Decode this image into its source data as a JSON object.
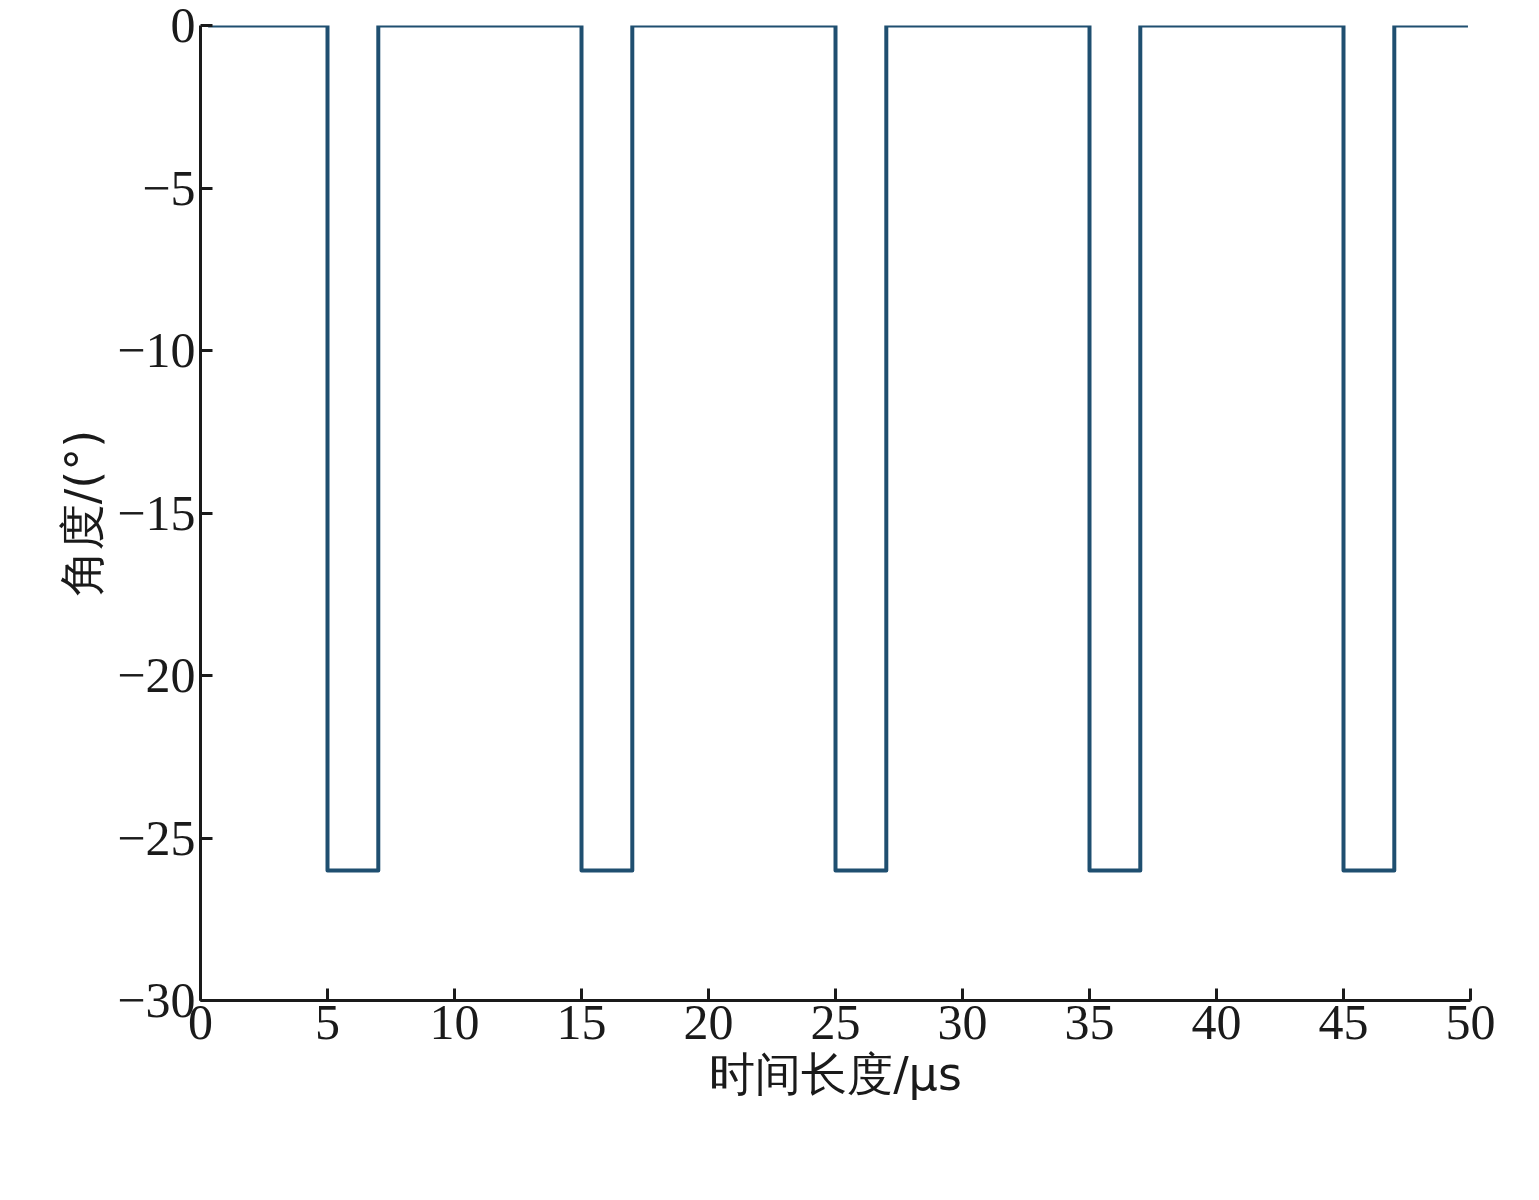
{
  "chart_data": {
    "type": "line",
    "xlabel": "时间长度/μs",
    "ylabel": "角度/(°)",
    "x": [
      0.3,
      5,
      5,
      7,
      7,
      15,
      15,
      17,
      17,
      25,
      25,
      27,
      27,
      35,
      35,
      37,
      37,
      45,
      45,
      47,
      47,
      49.9
    ],
    "series": [
      {
        "color": "#1f4f70",
        "values": [
          0,
          0,
          -26,
          -26,
          0,
          0,
          -26,
          -26,
          0,
          0,
          -26,
          -26,
          0,
          0,
          -26,
          -26,
          0,
          0,
          -26,
          -26,
          0,
          0
        ]
      }
    ],
    "xlim": [
      0,
      50
    ],
    "xticks": [
      0,
      5,
      10,
      15,
      20,
      25,
      30,
      35,
      40,
      45,
      50
    ],
    "ylim": [
      -30,
      0
    ],
    "yticks": [
      0,
      -5,
      -10,
      -15,
      -20,
      -25,
      -30
    ],
    "grid": false,
    "marker": "none",
    "line_style": "solid"
  }
}
